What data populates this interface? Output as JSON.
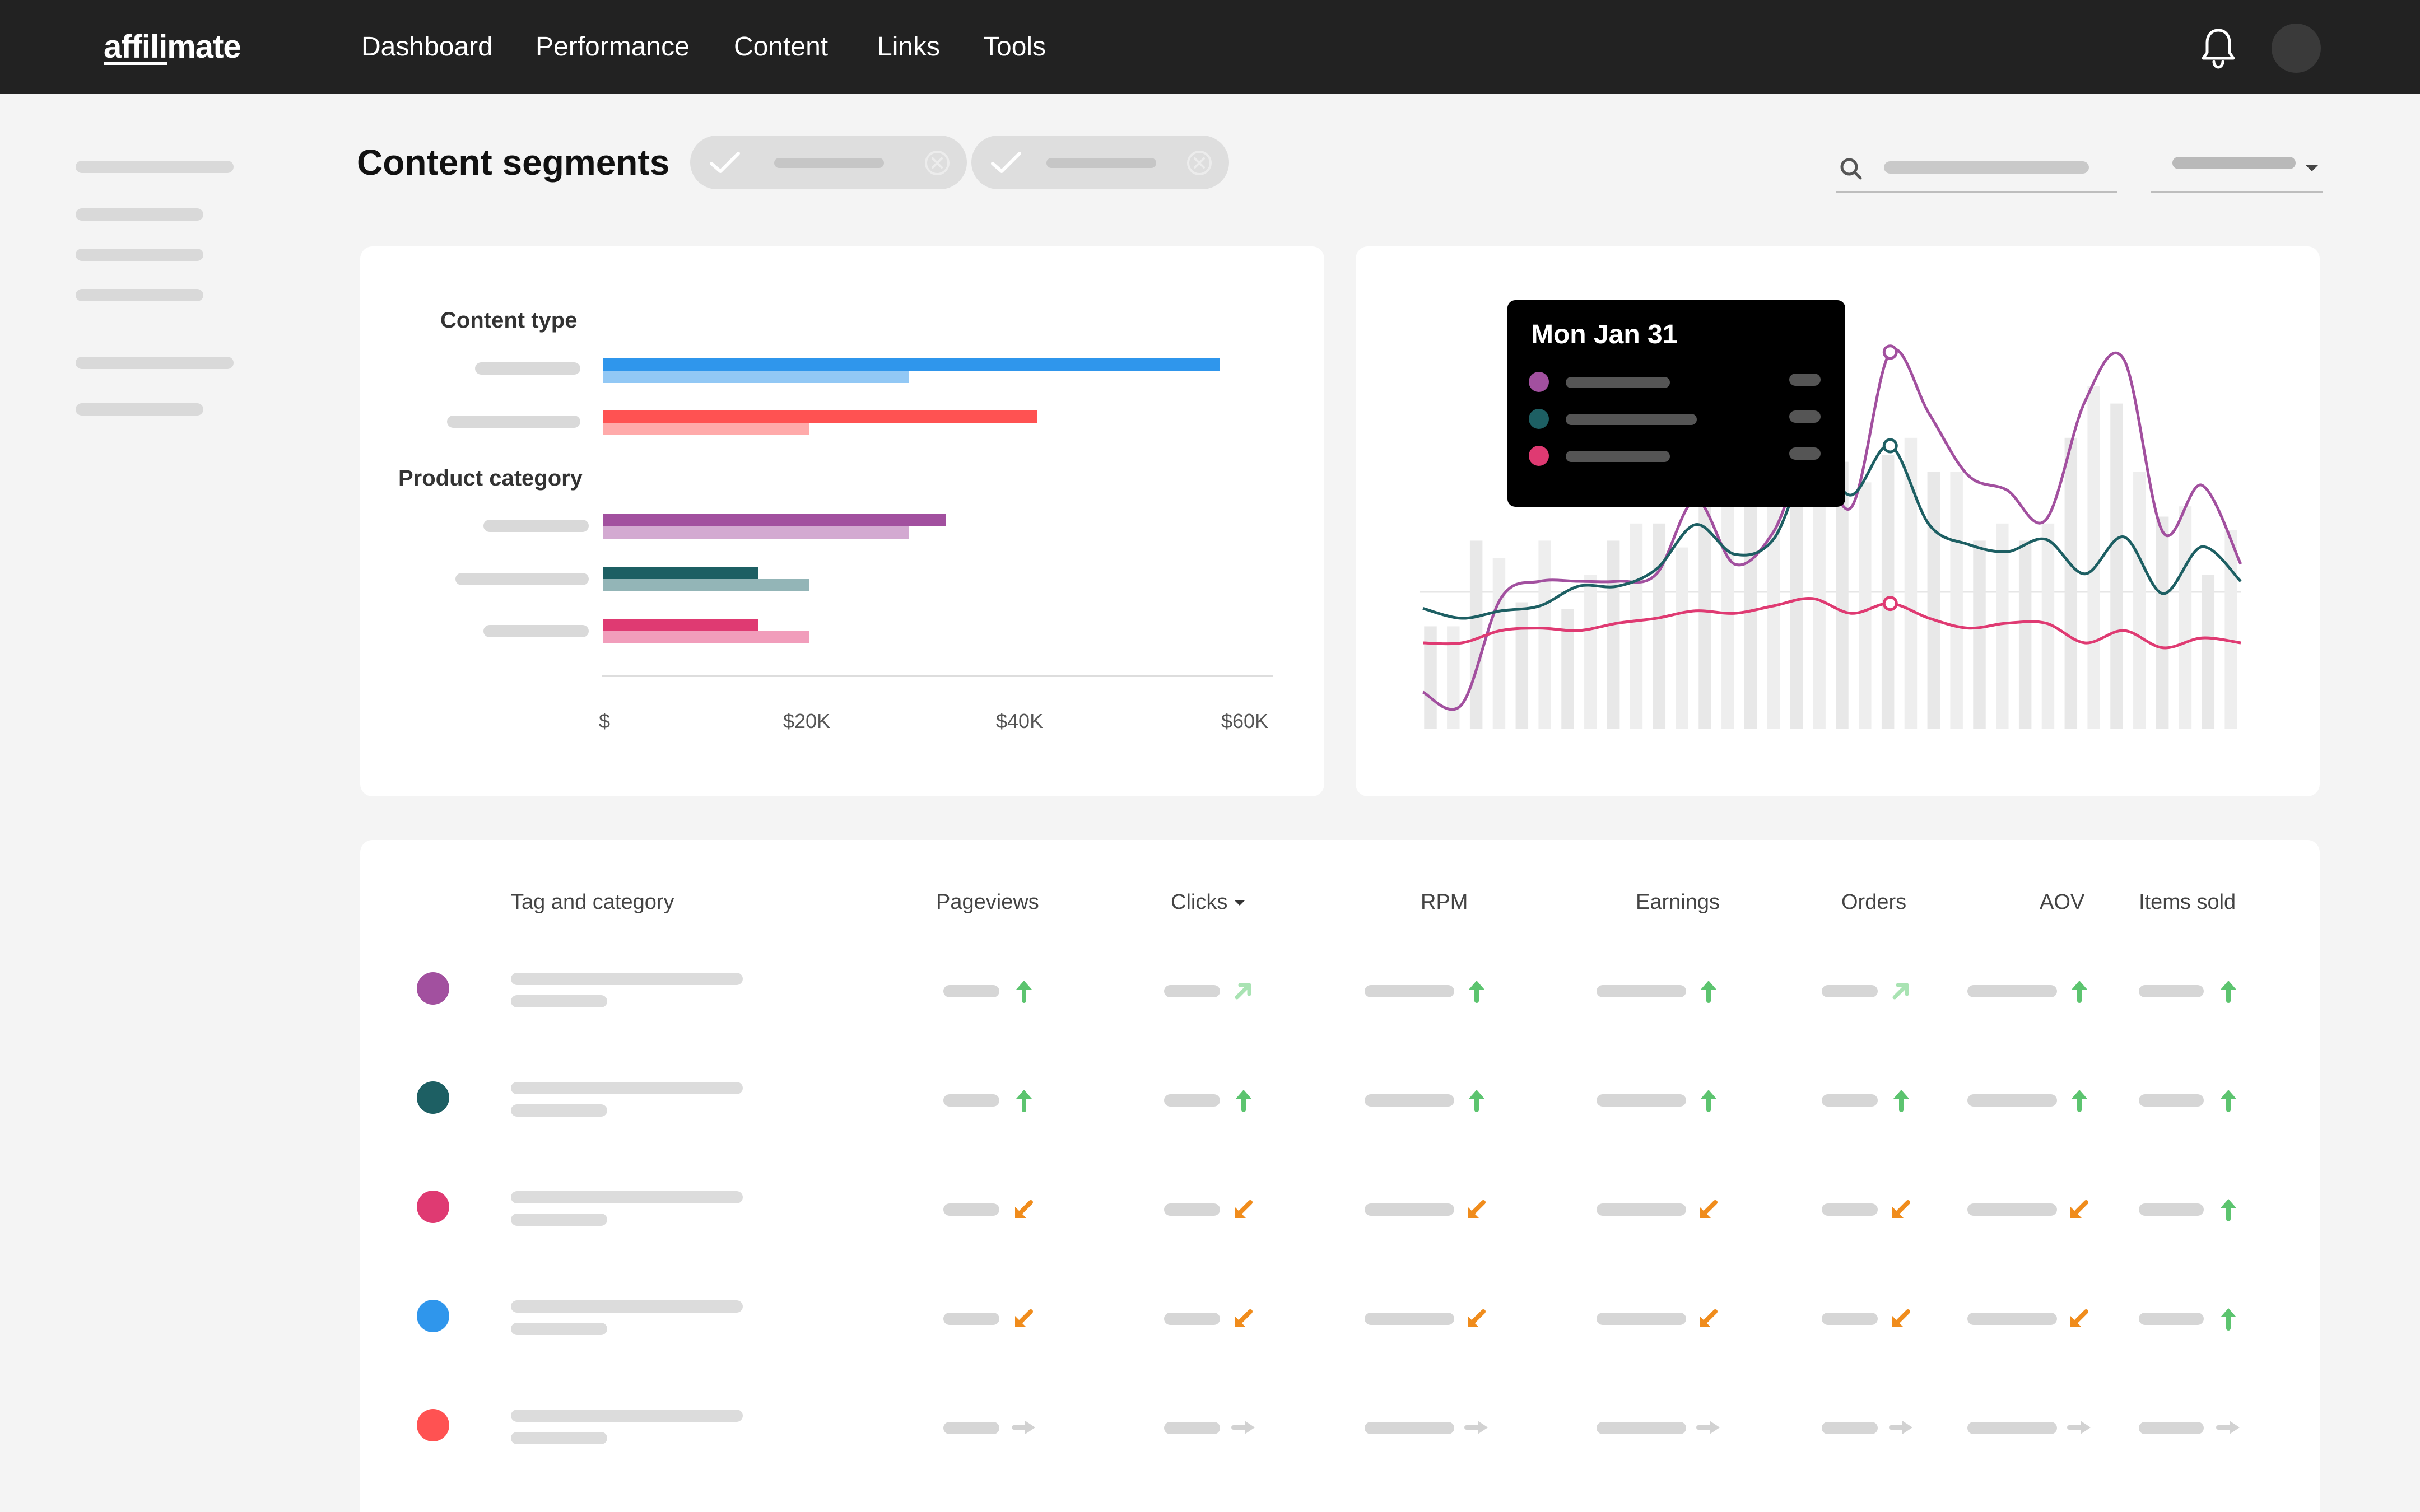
{
  "app": {
    "logo_a": "affili",
    "logo_b": "mate"
  },
  "nav": {
    "items": [
      "Dashboard",
      "Performance",
      "Content",
      "Links",
      "Tools"
    ]
  },
  "header": {
    "title": "Content segments"
  },
  "bar_chart": {
    "type": "bar",
    "orientation": "horizontal",
    "group_labels": [
      "Content type",
      "Product category"
    ],
    "tick_labels": [
      "$",
      "$20K",
      "$40K",
      "$60K"
    ],
    "xlim": [
      0,
      60000
    ],
    "rows": [
      {
        "group": "Content type",
        "current": 57500,
        "previous": 28500,
        "color": "#2f96ec",
        "color_prev": "#92c8f5"
      },
      {
        "group": "Content type",
        "current": 40500,
        "previous": 19200,
        "color": "#ff5252",
        "color_prev": "#ffaaaa"
      },
      {
        "group": "Product category",
        "current": 32000,
        "previous": 28500,
        "color": "#a2509f",
        "color_prev": "#d3a9d1"
      },
      {
        "group": "Product category",
        "current": 14400,
        "previous": 19200,
        "color": "#1d5f63",
        "color_prev": "#93b5b7"
      },
      {
        "group": "Product category",
        "current": 14400,
        "previous": 19200,
        "color": "#df3a72",
        "color_prev": "#f19dbb"
      }
    ]
  },
  "line_chart": {
    "type": "line",
    "tooltip_title": "Mon Jan 31",
    "bars": [
      30,
      30,
      55,
      50,
      37,
      55,
      35,
      45,
      55,
      60,
      60,
      53,
      70,
      68,
      65,
      75,
      80,
      75,
      78,
      72,
      80,
      85,
      75,
      75,
      55,
      60,
      55,
      60,
      85,
      100,
      95,
      75,
      62,
      65,
      45,
      58
    ],
    "series": [
      {
        "color": "#a2509f",
        "values": [
          10,
          5,
          48,
          55,
          55,
          55,
          58,
          88,
          62,
          75,
          110,
          85,
          148,
          123,
          98,
          92,
          80,
          128,
          145,
          75,
          94,
          62
        ]
      },
      {
        "color": "#1d5f63",
        "values": [
          44,
          40,
          43,
          45,
          53,
          53,
          60,
          78,
          66,
          72,
          105,
          90,
          110,
          78,
          70,
          67,
          72,
          58,
          73,
          50,
          69,
          55
        ]
      },
      {
        "color": "#df3a72",
        "values": [
          30,
          30,
          35,
          36,
          35,
          38,
          40,
          43,
          42,
          45,
          48,
          42,
          46,
          40,
          36,
          38,
          38,
          30,
          35,
          28,
          32,
          30
        ]
      }
    ],
    "highlight_index": 12
  },
  "table": {
    "columns": [
      "Tag and category",
      "Pageviews",
      "Clicks",
      "RPM",
      "Earnings",
      "Orders",
      "AOV",
      "Items sold"
    ],
    "rows": [
      {
        "color": "#a2509f",
        "trends": [
          "up",
          "up-light",
          "up",
          "up",
          "up-light",
          "up",
          "up"
        ]
      },
      {
        "color": "#1d5f63",
        "trends": [
          "up",
          "up",
          "up",
          "up",
          "up",
          "up",
          "up"
        ]
      },
      {
        "color": "#df3a72",
        "trends": [
          "down",
          "down",
          "down",
          "down",
          "down",
          "down",
          "up"
        ]
      },
      {
        "color": "#2f96ec",
        "trends": [
          "down",
          "down",
          "down",
          "down",
          "down",
          "down",
          "up"
        ]
      },
      {
        "color": "#ff5252",
        "trends": [
          "flat",
          "flat",
          "flat",
          "flat",
          "flat",
          "flat",
          "flat"
        ]
      }
    ]
  }
}
